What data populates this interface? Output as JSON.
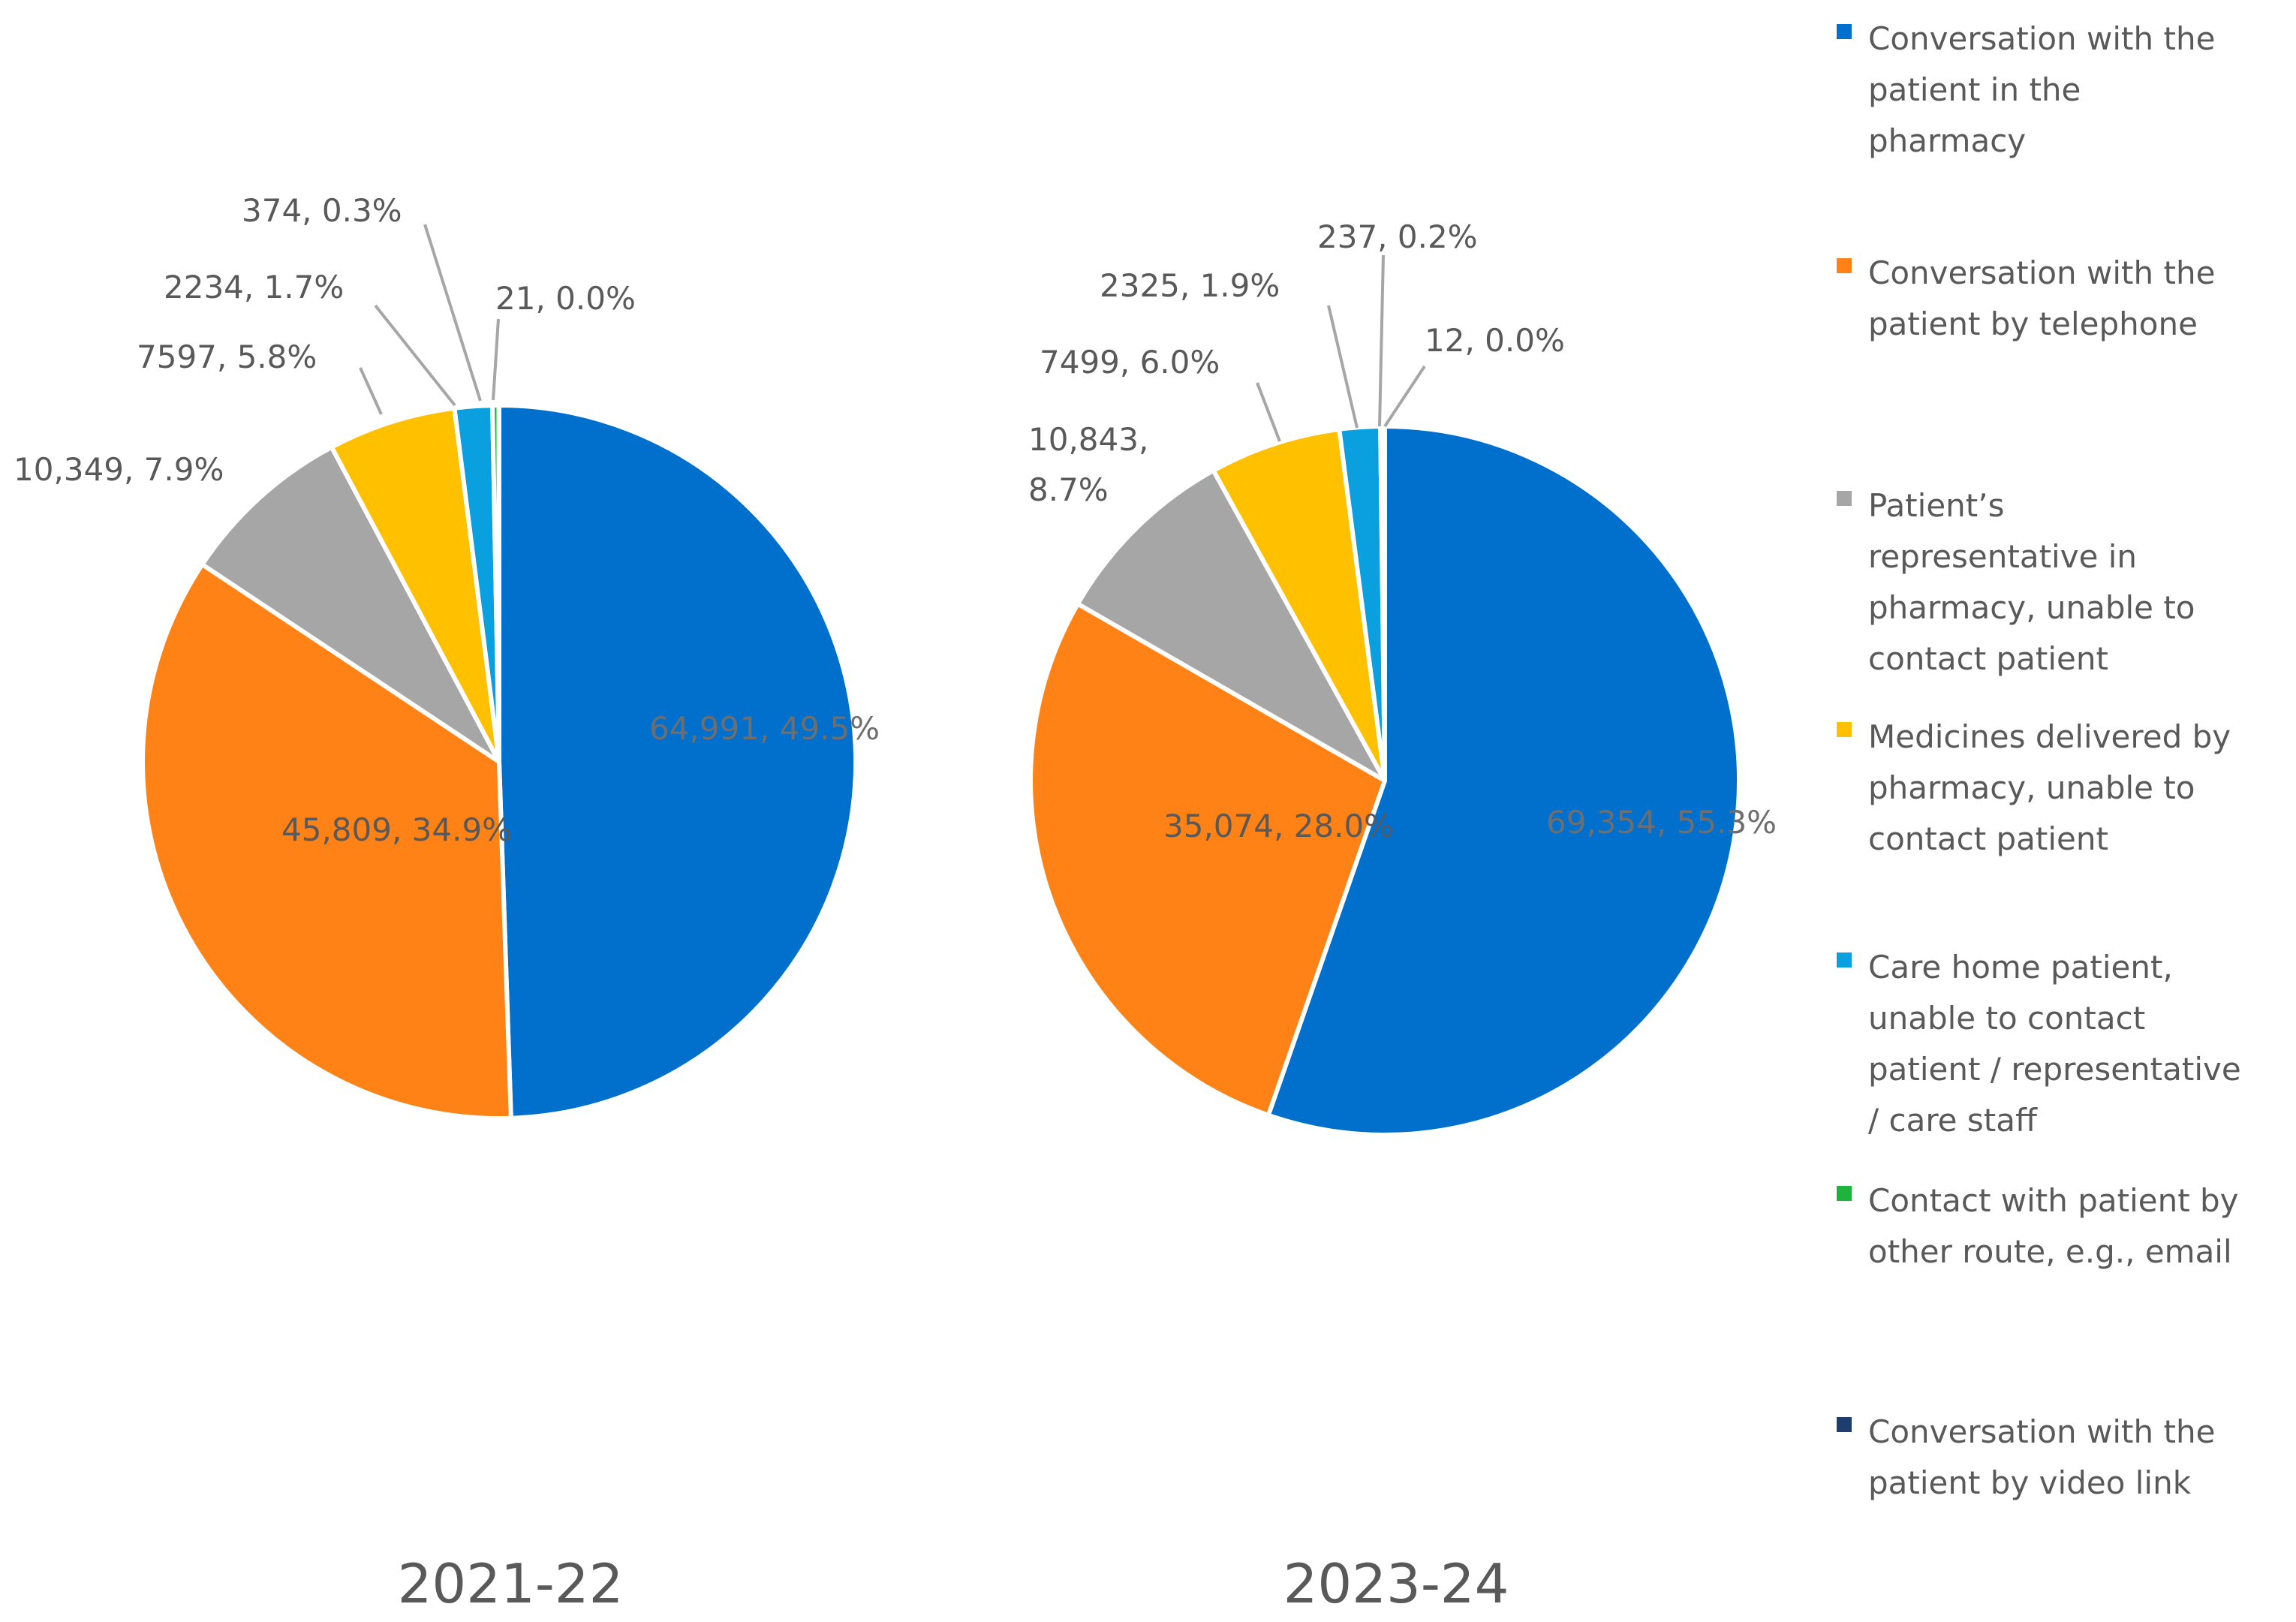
{
  "chart_data": [
    {
      "type": "pie",
      "title": "2021-22",
      "slices": [
        {
          "label": "Conversation with the patient in the pharmacy",
          "value": 64991,
          "percent": "49.5%",
          "data_label": "64,991, 49.5%",
          "color": "#0070CC"
        },
        {
          "label": "Conversation with the patient by telephone",
          "value": 45809,
          "percent": "34.9%",
          "data_label": "45,809, 34.9%",
          "color": "#FF8217"
        },
        {
          "label": "Patient’s representative in pharmacy, unable to contact patient",
          "value": 10349,
          "percent": "7.9%",
          "data_label": "10,349, 7.9%",
          "color": "#A6A6A6"
        },
        {
          "label": "Medicines delivered by pharmacy, unable to contact patient",
          "value": 7597,
          "percent": "5.8%",
          "data_label": "7597, 5.8%",
          "color": "#FFC000"
        },
        {
          "label": "Care home patient, unable to contact patient / representative / care staff",
          "value": 2234,
          "percent": "1.7%",
          "data_label": "2234, 1.7%",
          "color": "#0AA0DF"
        },
        {
          "label": "Contact with patient by other route, e.g., email",
          "value": 374,
          "percent": "0.3%",
          "data_label": "374, 0.3%",
          "color": "#1EB43C"
        },
        {
          "label": "Conversation with the patient by video link",
          "value": 21,
          "percent": "0.0%",
          "data_label": "21, 0.0%",
          "color": "#1C3D6E"
        }
      ]
    },
    {
      "type": "pie",
      "title": "2023-24",
      "slices": [
        {
          "label": "Conversation with the patient in the pharmacy",
          "value": 69354,
          "percent": "55.3%",
          "data_label": "69,354, 55.3%",
          "color": "#0070CC"
        },
        {
          "label": "Conversation with the patient by telephone",
          "value": 35074,
          "percent": "28.0%",
          "data_label": "35,074, 28.0%",
          "color": "#FF8217"
        },
        {
          "label": "Patient’s representative in pharmacy, unable to contact patient",
          "value": 10843,
          "percent": "8.7%",
          "data_label": "10,843, 8.7%",
          "color": "#A6A6A6"
        },
        {
          "label": "Medicines delivered by pharmacy, unable to contact patient",
          "value": 7499,
          "percent": "6.0%",
          "data_label": "7499, 6.0%",
          "color": "#FFC000"
        },
        {
          "label": "Care home patient, unable to contact patient / representative / care staff",
          "value": 2325,
          "percent": "1.9%",
          "data_label": "2325, 1.9%",
          "color": "#0AA0DF"
        },
        {
          "label": "Contact with patient by other route, e.g., email",
          "value": 237,
          "percent": "0.2%",
          "data_label": "237, 0.2%",
          "color": "#1EB43C"
        },
        {
          "label": "Conversation with the patient by video link",
          "value": 12,
          "percent": "0.0%",
          "data_label": "12, 0.0%",
          "color": "#1C3D6E"
        }
      ]
    }
  ],
  "legend": {
    "position": "right",
    "items": [
      {
        "label": "Conversation with the patient in the pharmacy",
        "color": "#0070CC"
      },
      {
        "label": "Conversation with the patient by telephone",
        "color": "#FF8217"
      },
      {
        "label": "Patient’s representative in pharmacy, unable to contact patient",
        "color": "#A6A6A6"
      },
      {
        "label": "Medicines delivered by pharmacy, unable to contact patient",
        "color": "#FFC000"
      },
      {
        "label": "Care home patient, unable to contact patient / representative / care staff",
        "color": "#0AA0DF"
      },
      {
        "label": "Contact with patient by other route, e.g., email",
        "color": "#1EB43C"
      },
      {
        "label": "Conversation with the patient by video link",
        "color": "#1C3D6E"
      }
    ]
  },
  "styles": {
    "text_color": "#595959",
    "leader_color": "#A6A6A6",
    "inside_label_color": "#6E6E6E"
  }
}
